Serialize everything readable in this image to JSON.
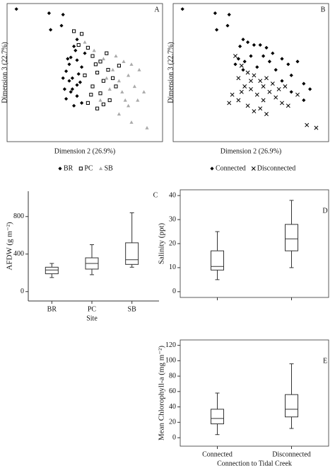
{
  "chart_data": [
    {
      "type": "scatter",
      "label": "A",
      "x_label": "Dimension 2 (26.9%)",
      "y_label": "Dimension 3 (22.7%)",
      "xlim": [
        0,
        100
      ],
      "ylim": [
        0,
        100
      ],
      "series": [
        {
          "name": "BR",
          "marker": "diamond",
          "color": "#000000",
          "x": [
            6,
            27,
            36,
            28,
            35,
            45,
            43,
            41,
            40,
            38,
            42,
            45,
            41,
            38,
            43,
            48,
            50,
            45,
            42,
            45,
            48,
            40,
            46,
            37,
            44,
            39,
            47,
            36
          ],
          "y": [
            96,
            93,
            92,
            81,
            84,
            74,
            69,
            61,
            56,
            51,
            46,
            41,
            36,
            31,
            26,
            54,
            64,
            59,
            38,
            33,
            28,
            44,
            49,
            38,
            66,
            60,
            43,
            46
          ]
        },
        {
          "name": "PC",
          "marker": "square",
          "color": "#000000",
          "x": [
            43,
            48,
            46,
            52,
            55,
            60,
            58,
            65,
            62,
            55,
            60,
            66,
            52,
            58,
            70,
            64,
            72,
            50,
            57,
            68,
            54,
            62
          ],
          "y": [
            80,
            78,
            70,
            68,
            62,
            58,
            50,
            52,
            44,
            40,
            35,
            30,
            28,
            24,
            40,
            64,
            55,
            48,
            56,
            46,
            34,
            27
          ]
        },
        {
          "name": "SB",
          "marker": "triangle",
          "color": "#aaaaaa",
          "x": [
            50,
            56,
            62,
            70,
            75,
            80,
            85,
            78,
            72,
            66,
            74,
            82,
            88,
            84,
            78,
            72,
            60,
            64,
            90,
            80,
            68,
            76
          ],
          "y": [
            72,
            66,
            60,
            62,
            58,
            56,
            52,
            48,
            44,
            38,
            36,
            40,
            36,
            30,
            26,
            20,
            30,
            46,
            10,
            14,
            52,
            30
          ]
        }
      ]
    },
    {
      "type": "scatter",
      "label": "B",
      "x_label": "Dimension 2 (26.9%)",
      "y_label": "Dimension 3 (22.7%)",
      "xlim": [
        0,
        100
      ],
      "ylim": [
        0,
        100
      ],
      "series": [
        {
          "name": "Connected",
          "marker": "diamond",
          "color": "#000000",
          "x": [
            6,
            27,
            36,
            28,
            35,
            45,
            43,
            48,
            52,
            56,
            60,
            64,
            58,
            50,
            42,
            46,
            62,
            70,
            74,
            80,
            76,
            84,
            88,
            84,
            76,
            70,
            40,
            45,
            54,
            66
          ],
          "y": [
            96,
            93,
            92,
            81,
            84,
            74,
            69,
            72,
            70,
            70,
            68,
            64,
            62,
            62,
            60,
            58,
            58,
            60,
            56,
            58,
            48,
            42,
            38,
            30,
            36,
            44,
            56,
            52,
            54,
            52
          ]
        },
        {
          "name": "Disconnected",
          "marker": "cross",
          "color": "#000000",
          "x": [
            40,
            44,
            48,
            52,
            56,
            60,
            64,
            42,
            46,
            50,
            54,
            58,
            62,
            66,
            70,
            74,
            38,
            36,
            42,
            48,
            52,
            56,
            60,
            68,
            72,
            80,
            86,
            92,
            44,
            50,
            58
          ],
          "y": [
            62,
            55,
            50,
            48,
            44,
            46,
            42,
            46,
            40,
            38,
            34,
            30,
            36,
            32,
            28,
            26,
            34,
            28,
            30,
            26,
            22,
            24,
            20,
            38,
            40,
            34,
            12,
            10,
            36,
            44,
            40
          ]
        }
      ]
    },
    {
      "type": "box",
      "label": "C",
      "x_label": "Site",
      "y_label": "AFDW (g m⁻²)",
      "categories": [
        "BR",
        "PC",
        "SB"
      ],
      "ylim": [
        -100,
        1070
      ],
      "yticks": [
        0,
        400,
        800
      ],
      "min": [
        150,
        180,
        260
      ],
      "q1": [
        190,
        240,
        290
      ],
      "median": [
        230,
        300,
        340
      ],
      "q3": [
        260,
        360,
        520
      ],
      "max": [
        300,
        500,
        840
      ]
    },
    {
      "type": "box",
      "label": "D",
      "y_label": "Salinity (ppt)",
      "categories": [
        null,
        null
      ],
      "ylim": [
        -2.4,
        42.4
      ],
      "yticks": [
        0,
        10,
        20,
        30,
        40
      ],
      "min": [
        5,
        10
      ],
      "q1": [
        9,
        17
      ],
      "median": [
        10.5,
        22
      ],
      "q3": [
        17,
        28
      ],
      "max": [
        25,
        38
      ]
    },
    {
      "type": "box",
      "label": "E",
      "x_label": "Connection to Tidal Creek",
      "y_label": "Mean Chlorophyll-a (mg m⁻²)",
      "categories": [
        "Connected",
        "Disconnected"
      ],
      "ylim": [
        -11,
        127
      ],
      "yticks": [
        0,
        20,
        40,
        60,
        80,
        100,
        120
      ],
      "min": [
        4,
        12
      ],
      "q1": [
        18,
        27
      ],
      "median": [
        25,
        37
      ],
      "q3": [
        37,
        56
      ],
      "max": [
        58,
        96
      ]
    }
  ]
}
